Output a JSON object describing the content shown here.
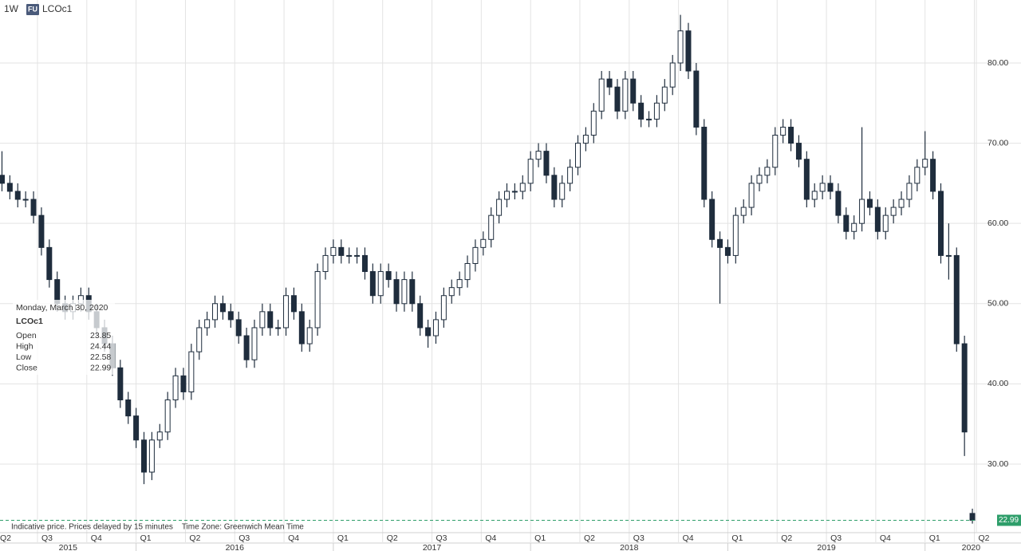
{
  "header": {
    "interval": "1W",
    "badge": "FU",
    "symbol": "LCOc1"
  },
  "chart_data": {
    "type": "candlestick",
    "footnote": "Indicative price. Prices delayed by 15 minutes    Time Zone: Greenwich Mean Time",
    "tooltip": {
      "date": "Monday, March 30, 2020",
      "symbol": "LCOc1",
      "labels": [
        "Open",
        "High",
        "Low",
        "Close"
      ]
    },
    "xlim": [
      2015.31,
      2020.26
    ],
    "xticks": [
      {
        "value": 2015.25,
        "label": "Q2"
      },
      {
        "value": 2015.5,
        "label": "Q3"
      },
      {
        "value": 2015.75,
        "label": "Q4"
      },
      {
        "value": 2016,
        "label": "Q1"
      },
      {
        "value": 2016.25,
        "label": "Q2"
      },
      {
        "value": 2016.5,
        "label": "Q3"
      },
      {
        "value": 2016.75,
        "label": "Q4"
      },
      {
        "value": 2017,
        "label": "Q1"
      },
      {
        "value": 2017.25,
        "label": "Q2"
      },
      {
        "value": 2017.5,
        "label": "Q3"
      },
      {
        "value": 2017.75,
        "label": "Q4"
      },
      {
        "value": 2018,
        "label": "Q1"
      },
      {
        "value": 2018.25,
        "label": "Q2"
      },
      {
        "value": 2018.5,
        "label": "Q3"
      },
      {
        "value": 2018.75,
        "label": "Q4"
      },
      {
        "value": 2019,
        "label": "Q1"
      },
      {
        "value": 2019.25,
        "label": "Q2"
      },
      {
        "value": 2019.5,
        "label": "Q3"
      },
      {
        "value": 2019.75,
        "label": "Q4"
      },
      {
        "value": 2020,
        "label": "Q1"
      },
      {
        "value": 2020.25,
        "label": "Q2"
      }
    ],
    "year_ticks": [
      2015,
      2016,
      2017,
      2018,
      2019,
      2020
    ],
    "ylim": [
      21.45,
      87.85
    ],
    "yticks": [
      {
        "value": 30,
        "label": "30.00"
      },
      {
        "value": 40,
        "label": "40.00"
      },
      {
        "value": 50,
        "label": "50.00"
      },
      {
        "value": 60,
        "label": "60.00"
      },
      {
        "value": 70,
        "label": "70.00"
      },
      {
        "value": 80,
        "label": "80.00"
      }
    ],
    "grid": true,
    "last_price_color": "#2e9e6a",
    "up_color": "#ffffff",
    "down_color": "#1f2d3d",
    "x": [
      2015.32,
      2015.36,
      2015.4,
      2015.44,
      2015.48,
      2015.52,
      2015.56,
      2015.6,
      2015.64,
      2015.68,
      2015.72,
      2015.76,
      2015.8,
      2015.84,
      2015.88,
      2015.92,
      2015.96,
      2016.0,
      2016.04,
      2016.08,
      2016.12,
      2016.16,
      2016.2,
      2016.24,
      2016.28,
      2016.32,
      2016.36,
      2016.4,
      2016.44,
      2016.48,
      2016.52,
      2016.56,
      2016.6,
      2016.64,
      2016.68,
      2016.72,
      2016.76,
      2016.8,
      2016.84,
      2016.88,
      2016.92,
      2016.96,
      2017.0,
      2017.04,
      2017.08,
      2017.12,
      2017.16,
      2017.2,
      2017.24,
      2017.28,
      2017.32,
      2017.36,
      2017.4,
      2017.44,
      2017.48,
      2017.52,
      2017.56,
      2017.6,
      2017.64,
      2017.68,
      2017.72,
      2017.76,
      2017.8,
      2017.84,
      2017.88,
      2017.92,
      2017.96,
      2018.0,
      2018.04,
      2018.08,
      2018.12,
      2018.16,
      2018.2,
      2018.24,
      2018.28,
      2018.32,
      2018.36,
      2018.4,
      2018.44,
      2018.48,
      2018.52,
      2018.56,
      2018.6,
      2018.64,
      2018.68,
      2018.72,
      2018.76,
      2018.8,
      2018.84,
      2018.88,
      2018.92,
      2018.96,
      2019.0,
      2019.04,
      2019.08,
      2019.12,
      2019.16,
      2019.2,
      2019.24,
      2019.28,
      2019.32,
      2019.36,
      2019.4,
      2019.44,
      2019.48,
      2019.52,
      2019.56,
      2019.6,
      2019.64,
      2019.68,
      2019.72,
      2019.76,
      2019.8,
      2019.84,
      2019.88,
      2019.92,
      2019.96,
      2020.0,
      2020.04,
      2020.08,
      2020.12,
      2020.16,
      2020.2,
      2020.24
    ],
    "series": [
      {
        "name": "LCOc1",
        "open": [
          66,
          65,
          64,
          63,
          63,
          61,
          57,
          53,
          50,
          49,
          50,
          51,
          49,
          47,
          45,
          42,
          38,
          36,
          33,
          29,
          33,
          34,
          38,
          41,
          39,
          44,
          47,
          48,
          50,
          49,
          48,
          46,
          43,
          47,
          49,
          47,
          47,
          51,
          49,
          45,
          47,
          54,
          56,
          57,
          56,
          56,
          56,
          54,
          51,
          54,
          53,
          50,
          53,
          50,
          47,
          46,
          48,
          51,
          52,
          53,
          55,
          57,
          58,
          61,
          63,
          64,
          64,
          65,
          68,
          69,
          66,
          63,
          65,
          67,
          70,
          71,
          74,
          78,
          77,
          74,
          78,
          75,
          73,
          73,
          75,
          77,
          80,
          84,
          79,
          72,
          63,
          58,
          57,
          56,
          61,
          62,
          65,
          66,
          67,
          71,
          72,
          70,
          68,
          63,
          64,
          65,
          64,
          61,
          59,
          60,
          63,
          62,
          59,
          61,
          62,
          63,
          65,
          67,
          68,
          64,
          56,
          56,
          45,
          23.85
        ],
        "high": [
          69,
          66,
          65,
          64,
          64,
          62,
          58,
          54,
          51,
          51,
          52,
          52,
          50,
          48,
          46,
          43,
          39,
          37,
          34,
          34,
          35,
          39,
          42,
          42,
          45,
          48,
          49,
          51,
          51,
          50,
          49,
          47,
          48,
          50,
          50,
          48,
          52,
          52,
          50,
          48,
          55,
          57,
          58,
          58,
          57,
          57,
          57,
          55,
          55,
          55,
          54,
          54,
          54,
          51,
          48,
          49,
          52,
          53,
          54,
          56,
          58,
          59,
          62,
          64,
          65,
          65,
          66,
          69,
          70,
          70,
          67,
          66,
          68,
          71,
          72,
          75,
          79,
          79,
          78,
          79,
          79,
          76,
          74,
          76,
          78,
          81,
          86,
          85,
          80,
          73,
          64,
          59,
          58,
          62,
          63,
          66,
          67,
          68,
          72,
          73,
          73,
          71,
          69,
          65,
          66,
          66,
          65,
          62,
          61,
          72,
          64,
          63,
          62,
          63,
          64,
          66,
          68,
          71.5,
          69,
          65,
          60,
          57,
          46,
          24.44
        ],
        "low": [
          64,
          63,
          62,
          62,
          60,
          56,
          52,
          49,
          48,
          48,
          49,
          48,
          46,
          44,
          41,
          37,
          35,
          32,
          27.5,
          28,
          32,
          33,
          37,
          38,
          38,
          43,
          46,
          47,
          48,
          47,
          45,
          42,
          42,
          46,
          46,
          46,
          46,
          48,
          44,
          44,
          46,
          53,
          55,
          55,
          55,
          55,
          53,
          50,
          50,
          52,
          49,
          49,
          49,
          46,
          44.5,
          45,
          47,
          50,
          51,
          52,
          54,
          56,
          57,
          60,
          62,
          63,
          63,
          64,
          67,
          65,
          62,
          62,
          64,
          66,
          69,
          70,
          73,
          76,
          73,
          73,
          74,
          72,
          72,
          72,
          74,
          76,
          79,
          78,
          71,
          62,
          57,
          50,
          55,
          55,
          60,
          61,
          64,
          65,
          66,
          70,
          69,
          67,
          62,
          62,
          63,
          63,
          60,
          58,
          58,
          59,
          61,
          58,
          58,
          60,
          61,
          62,
          64,
          66,
          63,
          55,
          53,
          44,
          31,
          22.58
        ],
        "close": [
          65,
          64,
          63,
          63,
          61,
          57,
          53,
          50,
          49,
          50,
          51,
          49,
          47,
          45,
          42,
          38,
          36,
          33,
          29,
          33,
          34,
          38,
          41,
          39,
          44,
          47,
          48,
          50,
          49,
          48,
          46,
          43,
          47,
          49,
          47,
          47,
          51,
          49,
          45,
          47,
          54,
          56,
          57,
          56,
          56,
          56,
          54,
          51,
          54,
          53,
          50,
          53,
          50,
          47,
          46,
          48,
          51,
          52,
          53,
          55,
          57,
          58,
          61,
          63,
          64,
          64,
          65,
          68,
          69,
          66,
          63,
          65,
          67,
          70,
          71,
          74,
          78,
          77,
          74,
          78,
          75,
          73,
          73,
          75,
          77,
          80,
          84,
          79,
          72,
          63,
          58,
          57,
          56,
          61,
          62,
          65,
          66,
          67,
          71,
          72,
          70,
          68,
          63,
          64,
          65,
          64,
          61,
          59,
          60,
          63,
          62,
          59,
          61,
          62,
          63,
          65,
          67,
          68,
          64,
          56,
          56,
          45,
          34,
          22.99
        ]
      }
    ]
  }
}
